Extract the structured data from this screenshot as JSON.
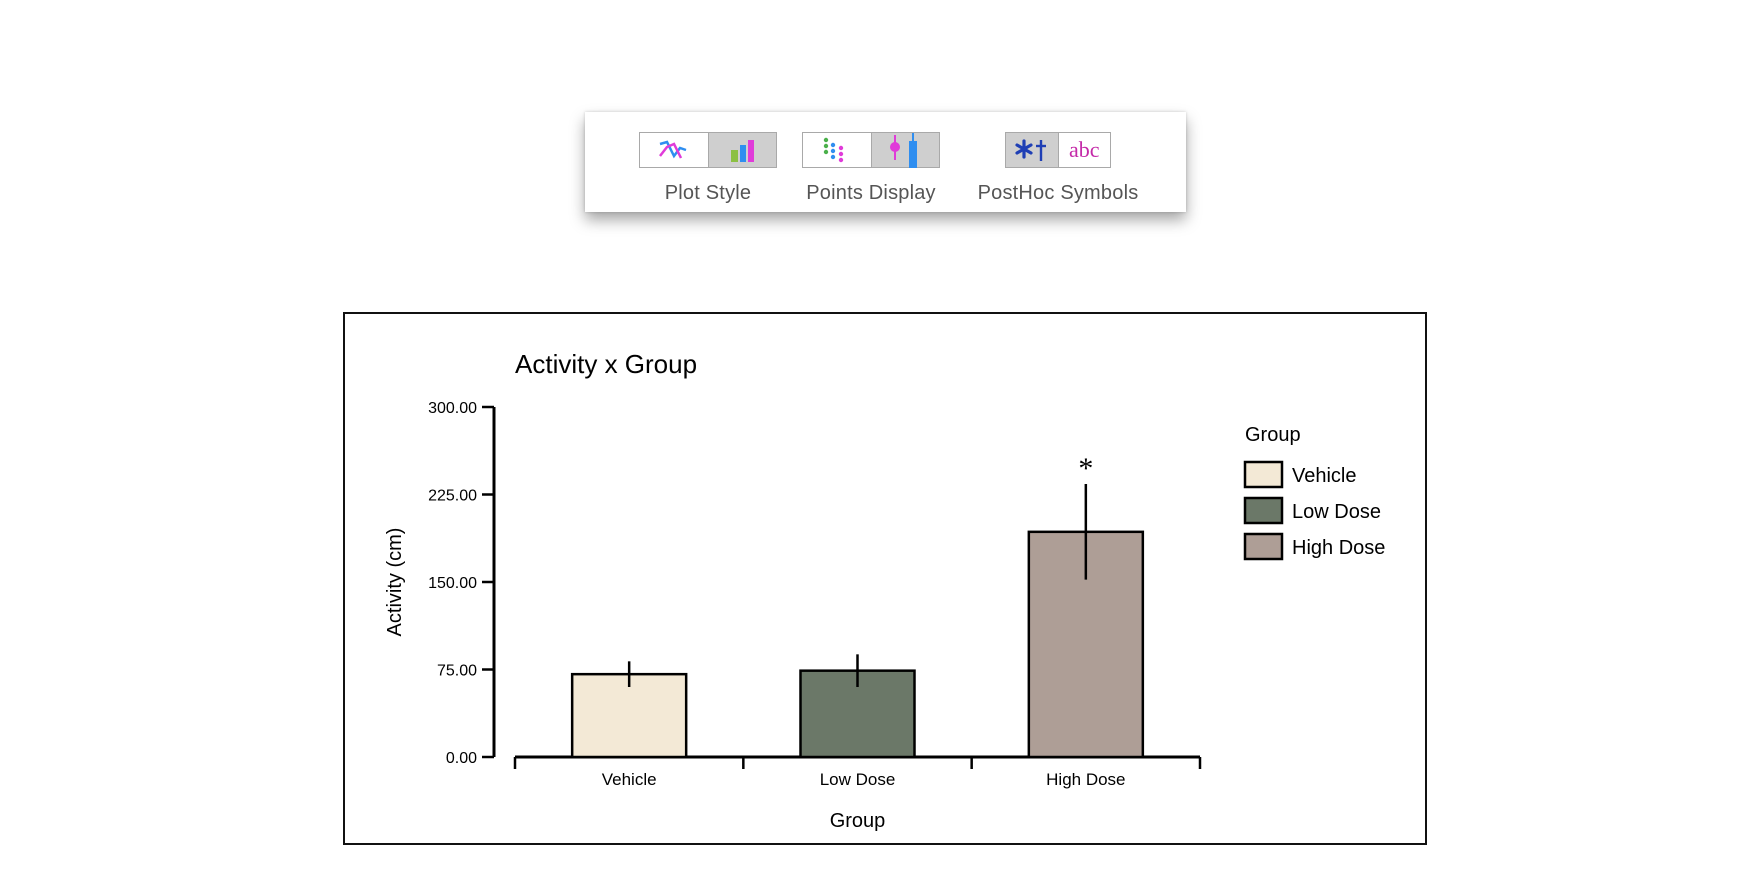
{
  "toolbar": {
    "groups": [
      {
        "label": "Plot Style",
        "buttons": [
          {
            "icon": "line-chart-icon",
            "active": false
          },
          {
            "icon": "bar-chart-icon",
            "active": true
          }
        ]
      },
      {
        "label": "Points Display",
        "buttons": [
          {
            "icon": "dot-points-icon",
            "active": false
          },
          {
            "icon": "error-bar-icon",
            "active": true
          }
        ]
      },
      {
        "label": "PostHoc Symbols",
        "buttons": [
          {
            "icon": "asterisk-dagger-icon",
            "symbol": "*†",
            "active": true
          },
          {
            "icon": "abc-letters-icon",
            "symbol": "abc",
            "active": false
          }
        ]
      }
    ]
  },
  "chart_data": {
    "type": "bar",
    "title": "Activity x Group",
    "xlabel": "Group",
    "ylabel": "Activity (cm)",
    "ylim": [
      0,
      300
    ],
    "yticks": [
      "0.00",
      "75.00",
      "150.00",
      "225.00",
      "300.00"
    ],
    "categories": [
      "Vehicle",
      "Low Dose",
      "High Dose"
    ],
    "values": [
      71,
      74,
      193
    ],
    "errors": [
      11,
      14,
      41
    ],
    "colors": [
      "#f3e9d6",
      "#6b7868",
      "#ae9e96"
    ],
    "annotations": [
      "",
      "",
      "*"
    ],
    "legend": {
      "title": "Group",
      "placement": "right",
      "entries": [
        "Vehicle",
        "Low Dose",
        "High Dose"
      ]
    },
    "grid": false
  }
}
